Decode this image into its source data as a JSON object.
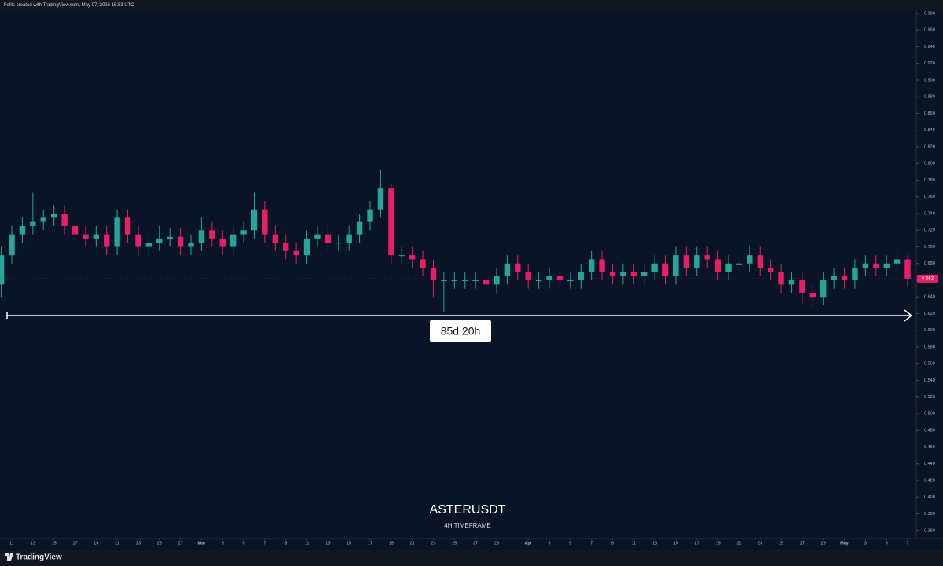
{
  "header": "Follis created with TradingView.com, May 07, 2026 15:53 UTC",
  "footer": "TradingView",
  "chart_data": {
    "type": "candlestick",
    "title": "ASTERUSDT",
    "subtitle": "4H TIMEFRAME",
    "measure_label": "85d 20h",
    "up_color": "#26a69a",
    "down_color": "#e91e63",
    "grid": false,
    "x": [
      -1,
      0,
      1,
      2,
      3,
      4,
      5,
      6,
      7,
      8,
      9,
      10,
      11,
      12,
      13,
      14,
      15,
      16,
      17,
      18,
      19,
      20,
      21,
      22,
      23,
      24,
      25,
      26,
      27,
      28,
      29,
      30,
      31,
      32,
      33,
      34,
      35,
      36,
      37,
      38,
      39,
      40,
      41,
      42,
      43,
      44,
      45,
      46,
      47,
      48,
      49,
      50,
      51,
      52,
      53,
      54,
      55,
      56,
      57,
      58,
      59,
      60,
      61,
      62,
      63,
      64,
      65,
      66,
      67,
      68,
      69,
      70,
      71,
      72,
      73,
      74,
      75,
      76,
      77,
      78,
      79,
      80,
      81,
      82,
      83,
      84,
      85
    ],
    "open": [
      0.655,
      0.69,
      0.715,
      0.725,
      0.73,
      0.735,
      0.74,
      0.725,
      0.715,
      0.71,
      0.715,
      0.7,
      0.735,
      0.715,
      0.7,
      0.705,
      0.71,
      0.712,
      0.7,
      0.705,
      0.72,
      0.71,
      0.7,
      0.715,
      0.72,
      0.745,
      0.715,
      0.705,
      0.695,
      0.69,
      0.71,
      0.715,
      0.705,
      0.705,
      0.715,
      0.73,
      0.745,
      0.77,
      0.69,
      0.69,
      0.685,
      0.675,
      0.66,
      0.66,
      0.66,
      0.66,
      0.66,
      0.655,
      0.665,
      0.68,
      0.67,
      0.66,
      0.66,
      0.665,
      0.66,
      0.66,
      0.67,
      0.685,
      0.67,
      0.665,
      0.67,
      0.665,
      0.67,
      0.68,
      0.665,
      0.69,
      0.675,
      0.69,
      0.685,
      0.67,
      0.68,
      0.68,
      0.69,
      0.675,
      0.67,
      0.655,
      0.66,
      0.645,
      0.64,
      0.66,
      0.665,
      0.66,
      0.675,
      0.68,
      0.675,
      0.68,
      0.685
    ],
    "high": [
      0.7,
      0.725,
      0.735,
      0.765,
      0.745,
      0.75,
      0.75,
      0.768,
      0.725,
      0.725,
      0.725,
      0.745,
      0.745,
      0.725,
      0.715,
      0.725,
      0.722,
      0.722,
      0.715,
      0.735,
      0.73,
      0.72,
      0.725,
      0.73,
      0.765,
      0.755,
      0.725,
      0.715,
      0.705,
      0.72,
      0.725,
      0.725,
      0.715,
      0.725,
      0.74,
      0.755,
      0.793,
      0.775,
      0.7,
      0.7,
      0.695,
      0.685,
      0.67,
      0.67,
      0.67,
      0.67,
      0.67,
      0.675,
      0.69,
      0.69,
      0.68,
      0.67,
      0.675,
      0.675,
      0.67,
      0.68,
      0.695,
      0.695,
      0.68,
      0.68,
      0.68,
      0.68,
      0.69,
      0.69,
      0.7,
      0.7,
      0.7,
      0.7,
      0.695,
      0.69,
      0.69,
      0.702,
      0.7,
      0.685,
      0.68,
      0.67,
      0.67,
      0.655,
      0.67,
      0.675,
      0.675,
      0.685,
      0.69,
      0.69,
      0.69,
      0.695,
      0.69
    ],
    "low": [
      0.64,
      0.68,
      0.705,
      0.715,
      0.72,
      0.725,
      0.715,
      0.705,
      0.7,
      0.7,
      0.69,
      0.69,
      0.705,
      0.69,
      0.69,
      0.695,
      0.7,
      0.69,
      0.69,
      0.695,
      0.7,
      0.69,
      0.69,
      0.705,
      0.71,
      0.705,
      0.695,
      0.685,
      0.68,
      0.68,
      0.7,
      0.695,
      0.695,
      0.695,
      0.705,
      0.72,
      0.735,
      0.68,
      0.68,
      0.675,
      0.665,
      0.64,
      0.622,
      0.65,
      0.65,
      0.65,
      0.645,
      0.645,
      0.655,
      0.66,
      0.65,
      0.65,
      0.65,
      0.65,
      0.65,
      0.65,
      0.66,
      0.66,
      0.655,
      0.655,
      0.655,
      0.655,
      0.66,
      0.655,
      0.655,
      0.665,
      0.665,
      0.675,
      0.66,
      0.66,
      0.67,
      0.67,
      0.665,
      0.66,
      0.645,
      0.645,
      0.63,
      0.628,
      0.63,
      0.65,
      0.65,
      0.65,
      0.665,
      0.665,
      0.665,
      0.67,
      0.652
    ],
    "close": [
      0.69,
      0.715,
      0.725,
      0.73,
      0.735,
      0.74,
      0.725,
      0.715,
      0.71,
      0.715,
      0.7,
      0.735,
      0.715,
      0.7,
      0.705,
      0.71,
      0.712,
      0.7,
      0.705,
      0.72,
      0.71,
      0.7,
      0.715,
      0.72,
      0.745,
      0.715,
      0.705,
      0.695,
      0.69,
      0.71,
      0.715,
      0.705,
      0.705,
      0.715,
      0.73,
      0.745,
      0.77,
      0.69,
      0.69,
      0.685,
      0.675,
      0.66,
      0.66,
      0.66,
      0.66,
      0.66,
      0.655,
      0.665,
      0.68,
      0.67,
      0.66,
      0.66,
      0.665,
      0.66,
      0.66,
      0.67,
      0.685,
      0.67,
      0.665,
      0.67,
      0.665,
      0.67,
      0.68,
      0.665,
      0.69,
      0.675,
      0.69,
      0.685,
      0.67,
      0.68,
      0.68,
      0.69,
      0.675,
      0.67,
      0.655,
      0.66,
      0.645,
      0.64,
      0.66,
      0.665,
      0.66,
      0.675,
      0.68,
      0.675,
      0.68,
      0.685,
      0.662
    ],
    "xlim": [
      -1.12,
      85.82
    ],
    "xticks": [
      {
        "value": 0,
        "label": "11"
      },
      {
        "value": 2,
        "label": "13"
      },
      {
        "value": 4,
        "label": "15"
      },
      {
        "value": 6,
        "label": "17"
      },
      {
        "value": 8,
        "label": "19"
      },
      {
        "value": 10,
        "label": "21"
      },
      {
        "value": 12,
        "label": "23"
      },
      {
        "value": 14,
        "label": "25"
      },
      {
        "value": 16,
        "label": "27"
      },
      {
        "value": 18,
        "label": "Mar"
      },
      {
        "value": 20,
        "label": "3"
      },
      {
        "value": 22,
        "label": "5"
      },
      {
        "value": 24,
        "label": "7"
      },
      {
        "value": 26,
        "label": "9"
      },
      {
        "value": 28,
        "label": "11"
      },
      {
        "value": 30,
        "label": "13"
      },
      {
        "value": 32,
        "label": "15"
      },
      {
        "value": 34,
        "label": "17"
      },
      {
        "value": 36,
        "label": "19"
      },
      {
        "value": 38,
        "label": "21"
      },
      {
        "value": 40,
        "label": "23"
      },
      {
        "value": 42,
        "label": "25"
      },
      {
        "value": 44,
        "label": "27"
      },
      {
        "value": 46,
        "label": "29"
      },
      {
        "value": 49,
        "label": "Apr"
      },
      {
        "value": 51,
        "label": "3"
      },
      {
        "value": 53,
        "label": "5"
      },
      {
        "value": 55,
        "label": "7"
      },
      {
        "value": 57,
        "label": "9"
      },
      {
        "value": 59,
        "label": "11"
      },
      {
        "value": 61,
        "label": "13"
      },
      {
        "value": 63,
        "label": "15"
      },
      {
        "value": 65,
        "label": "17"
      },
      {
        "value": 67,
        "label": "19"
      },
      {
        "value": 69,
        "label": "21"
      },
      {
        "value": 71,
        "label": "23"
      },
      {
        "value": 73,
        "label": "25"
      },
      {
        "value": 75,
        "label": "27"
      },
      {
        "value": 77,
        "label": "29"
      },
      {
        "value": 79,
        "label": "May"
      },
      {
        "value": 81,
        "label": "3"
      },
      {
        "value": 83,
        "label": "5"
      },
      {
        "value": 85,
        "label": "7"
      }
    ],
    "ylim": [
      0.3504,
      0.9847
    ],
    "yticks": [
      {
        "value": 0.98,
        "label": "0.980"
      },
      {
        "value": 0.96,
        "label": "0.960"
      },
      {
        "value": 0.94,
        "label": "0.940"
      },
      {
        "value": 0.92,
        "label": "0.920"
      },
      {
        "value": 0.9,
        "label": "0.900"
      },
      {
        "value": 0.88,
        "label": "0.880"
      },
      {
        "value": 0.86,
        "label": "0.860"
      },
      {
        "value": 0.84,
        "label": "0.840"
      },
      {
        "value": 0.82,
        "label": "0.820"
      },
      {
        "value": 0.8,
        "label": "0.800"
      },
      {
        "value": 0.78,
        "label": "0.780"
      },
      {
        "value": 0.76,
        "label": "0.760"
      },
      {
        "value": 0.74,
        "label": "0.740"
      },
      {
        "value": 0.72,
        "label": "0.720"
      },
      {
        "value": 0.7,
        "label": "0.700"
      },
      {
        "value": 0.68,
        "label": "0.680"
      },
      {
        "value": 0.66,
        "label": "0.660"
      },
      {
        "value": 0.64,
        "label": "0.640"
      },
      {
        "value": 0.62,
        "label": "0.620"
      },
      {
        "value": 0.6,
        "label": "0.600"
      },
      {
        "value": 0.58,
        "label": "0.580"
      },
      {
        "value": 0.56,
        "label": "0.560"
      },
      {
        "value": 0.54,
        "label": "0.540"
      },
      {
        "value": 0.52,
        "label": "0.520"
      },
      {
        "value": 0.5,
        "label": "0.500"
      },
      {
        "value": 0.48,
        "label": "0.480"
      },
      {
        "value": 0.46,
        "label": "0.460"
      },
      {
        "value": 0.44,
        "label": "0.440"
      },
      {
        "value": 0.42,
        "label": "0.420"
      },
      {
        "value": 0.4,
        "label": "0.400"
      },
      {
        "value": 0.38,
        "label": "0.380"
      },
      {
        "value": 0.36,
        "label": "0.360"
      }
    ]
  }
}
